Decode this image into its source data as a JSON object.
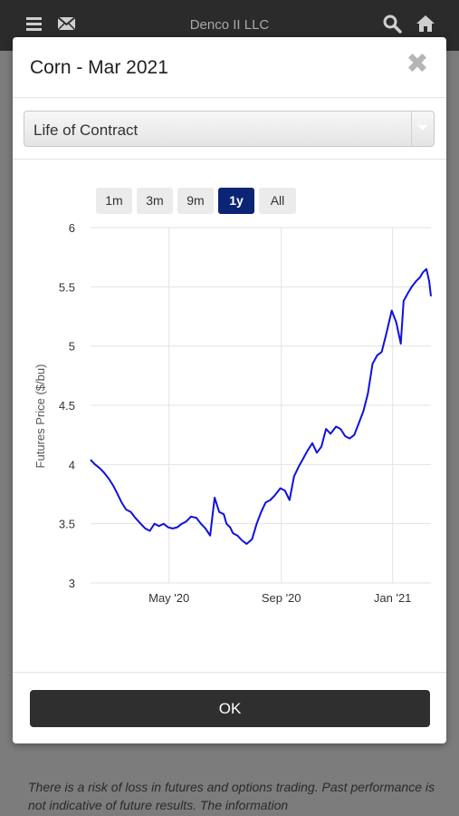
{
  "app": {
    "title": "Denco II LLC",
    "icons": [
      "menu-icon",
      "mail-icon",
      "search-icon",
      "home-icon"
    ]
  },
  "modal": {
    "title": "Corn - Mar 2021",
    "close_icon": "close-icon",
    "select_value": "Life of Contract",
    "range_buttons": [
      {
        "label": "1m",
        "active": false
      },
      {
        "label": "3m",
        "active": false
      },
      {
        "label": "9m",
        "active": false
      },
      {
        "label": "1y",
        "active": true
      },
      {
        "label": "All",
        "active": false
      }
    ],
    "ok_label": "OK"
  },
  "disclaimer": "There is a risk of loss in futures and options trading. Past performance is not indicative of future results. The information",
  "colors": {
    "accent": "#0b2574",
    "line": "#1010e0",
    "appbar": "#2b2b2b",
    "button": "#2f2f2f"
  },
  "chart_data": {
    "type": "line",
    "ylabel": "Futures Price ($/bu)",
    "ylim": [
      3,
      6
    ],
    "yticks": [
      "3",
      "3.5",
      "4",
      "4.5",
      "5",
      "5.5",
      "6"
    ],
    "xticks": [
      "May '20",
      "Sep '20",
      "Jan '21"
    ],
    "xlim": [
      "2020-02-05",
      "2021-02-12"
    ],
    "grid": true,
    "series": [
      {
        "x": [
          "2020-02-05",
          "2020-02-10",
          "2020-02-15",
          "2020-02-20",
          "2020-02-25",
          "2020-03-01",
          "2020-03-05",
          "2020-03-10",
          "2020-03-15",
          "2020-03-20",
          "2020-03-25",
          "2020-03-31",
          "2020-04-05",
          "2020-04-10",
          "2020-04-15",
          "2020-04-20",
          "2020-04-25",
          "2020-04-30",
          "2020-05-05",
          "2020-05-10",
          "2020-05-15",
          "2020-05-20",
          "2020-05-25",
          "2020-05-31",
          "2020-06-05",
          "2020-06-10",
          "2020-06-15",
          "2020-06-20",
          "2020-06-25",
          "2020-06-30",
          "2020-07-03",
          "2020-07-07",
          "2020-07-10",
          "2020-07-15",
          "2020-07-20",
          "2020-07-25",
          "2020-07-31",
          "2020-08-05",
          "2020-08-10",
          "2020-08-15",
          "2020-08-20",
          "2020-08-25",
          "2020-08-31",
          "2020-09-05",
          "2020-09-10",
          "2020-09-15",
          "2020-09-20",
          "2020-09-25",
          "2020-09-30",
          "2020-10-05",
          "2020-10-10",
          "2020-10-15",
          "2020-10-20",
          "2020-10-25",
          "2020-10-31",
          "2020-11-05",
          "2020-11-10",
          "2020-11-15",
          "2020-11-20",
          "2020-11-25",
          "2020-11-30",
          "2020-12-05",
          "2020-12-10",
          "2020-12-15",
          "2020-12-20",
          "2020-12-25",
          "2020-12-31",
          "2021-01-05",
          "2021-01-10",
          "2021-01-13",
          "2021-01-18",
          "2021-01-22",
          "2021-01-27",
          "2021-01-31",
          "2021-02-03",
          "2021-02-07",
          "2021-02-10",
          "2021-02-12"
        ],
        "y": [
          4.04,
          4.0,
          3.97,
          3.93,
          3.88,
          3.82,
          3.76,
          3.68,
          3.62,
          3.6,
          3.55,
          3.5,
          3.46,
          3.44,
          3.5,
          3.48,
          3.5,
          3.47,
          3.46,
          3.47,
          3.5,
          3.52,
          3.56,
          3.55,
          3.5,
          3.46,
          3.4,
          3.72,
          3.6,
          3.58,
          3.5,
          3.47,
          3.42,
          3.4,
          3.36,
          3.33,
          3.37,
          3.5,
          3.6,
          3.68,
          3.7,
          3.74,
          3.8,
          3.78,
          3.7,
          3.9,
          3.98,
          4.05,
          4.12,
          4.18,
          4.1,
          4.15,
          4.3,
          4.26,
          4.32,
          4.3,
          4.24,
          4.22,
          4.25,
          4.35,
          4.45,
          4.6,
          4.85,
          4.92,
          4.95,
          5.1,
          5.3,
          5.2,
          5.02,
          5.38,
          5.45,
          5.5,
          5.55,
          5.58,
          5.62,
          5.65,
          5.55,
          5.42
        ]
      }
    ]
  }
}
